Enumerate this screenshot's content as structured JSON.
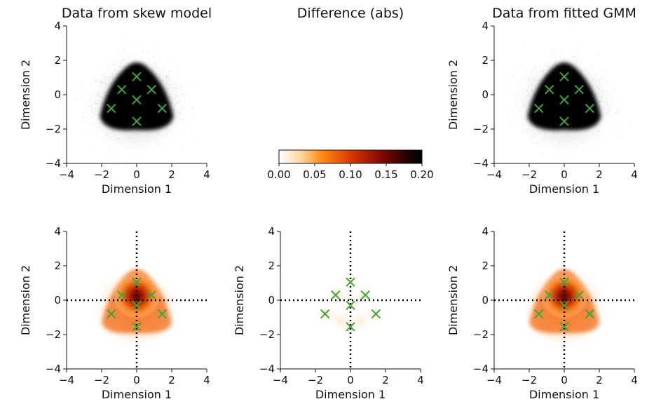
{
  "chart_data": [
    {
      "type": "scatter",
      "title": "Data from skew model",
      "xlabel": "Dimension 1",
      "ylabel": "Dimension 2",
      "xlim": [
        -4,
        4
      ],
      "ylim": [
        -4,
        4
      ],
      "xticks": [
        "−4",
        "−2",
        "0",
        "2",
        "4"
      ],
      "yticks": [
        "−4",
        "−2",
        "0",
        "2",
        "4"
      ],
      "centers": {
        "x": [
          0,
          -0.85,
          0.85,
          0,
          -1.45,
          1.45,
          0
        ],
        "y": [
          1.05,
          0.3,
          0.3,
          -0.3,
          -0.8,
          -0.8,
          -1.55
        ]
      },
      "grid": false
    },
    {
      "type": "heatmap",
      "title": "Difference (abs)",
      "colorbar": {
        "ticks": [
          "0.00",
          "0.05",
          "0.10",
          "0.15",
          "0.20"
        ],
        "range": [
          0,
          0.2
        ],
        "colormap": "gist_heat_r"
      }
    },
    {
      "type": "scatter",
      "title": "Data from fitted GMM",
      "xlabel": "Dimension 1",
      "ylabel": "Dimension 2",
      "xlim": [
        -4,
        4
      ],
      "ylim": [
        -4,
        4
      ],
      "xticks": [
        "−4",
        "−2",
        "0",
        "2",
        "4"
      ],
      "yticks": [
        "−4",
        "−2",
        "0",
        "2",
        "4"
      ],
      "centers": {
        "x": [
          0,
          -0.85,
          0.85,
          0,
          -1.45,
          1.45,
          0
        ],
        "y": [
          1.05,
          0.3,
          0.3,
          -0.3,
          -0.8,
          -0.8,
          -1.55
        ]
      },
      "grid": false
    },
    {
      "type": "heatmap",
      "title": "",
      "xlabel": "Dimension 1",
      "ylabel": "Dimension 2",
      "xlim": [
        -4,
        4
      ],
      "ylim": [
        -4,
        4
      ],
      "xticks": [
        "−4",
        "−2",
        "0",
        "2",
        "4"
      ],
      "yticks": [
        "−4",
        "−2",
        "0",
        "2",
        "4"
      ],
      "centers": {
        "x": [
          0,
          -0.85,
          0.85,
          0,
          -1.45,
          1.45,
          0
        ],
        "y": [
          1.05,
          0.3,
          0.3,
          -0.3,
          -0.8,
          -0.8,
          -1.55
        ]
      },
      "reference_lines": {
        "x": 0,
        "y": 0,
        "style": "dotted"
      }
    },
    {
      "type": "heatmap",
      "title": "",
      "xlabel": "Dimension 1",
      "ylabel": "Dimension 2",
      "xlim": [
        -4,
        4
      ],
      "ylim": [
        -4,
        4
      ],
      "xticks": [
        "−4",
        "−2",
        "0",
        "2",
        "4"
      ],
      "yticks": [
        "−4",
        "−2",
        "0",
        "2",
        "4"
      ],
      "centers": {
        "x": [
          0,
          -0.85,
          0.85,
          0,
          -1.45,
          1.45,
          0
        ],
        "y": [
          1.05,
          0.3,
          0.3,
          -0.3,
          -0.8,
          -0.8,
          -1.55
        ]
      },
      "reference_lines": {
        "x": 0,
        "y": 0,
        "style": "dotted"
      }
    },
    {
      "type": "heatmap",
      "title": "",
      "xlabel": "Dimension 1",
      "ylabel": "Dimension 2",
      "xlim": [
        -4,
        4
      ],
      "ylim": [
        -4,
        4
      ],
      "xticks": [
        "−4",
        "−2",
        "0",
        "2",
        "4"
      ],
      "yticks": [
        "−4",
        "−2",
        "0",
        "2",
        "4"
      ],
      "centers": {
        "x": [
          0,
          -0.85,
          0.85,
          0,
          -1.45,
          1.45,
          0
        ],
        "y": [
          1.05,
          0.3,
          0.3,
          -0.3,
          -0.8,
          -0.8,
          -1.55
        ]
      },
      "reference_lines": {
        "x": 0,
        "y": 0,
        "style": "dotted"
      }
    }
  ],
  "colors": {
    "marker": "#3fa33f",
    "scatter": "#000000",
    "axis": "#111111"
  }
}
